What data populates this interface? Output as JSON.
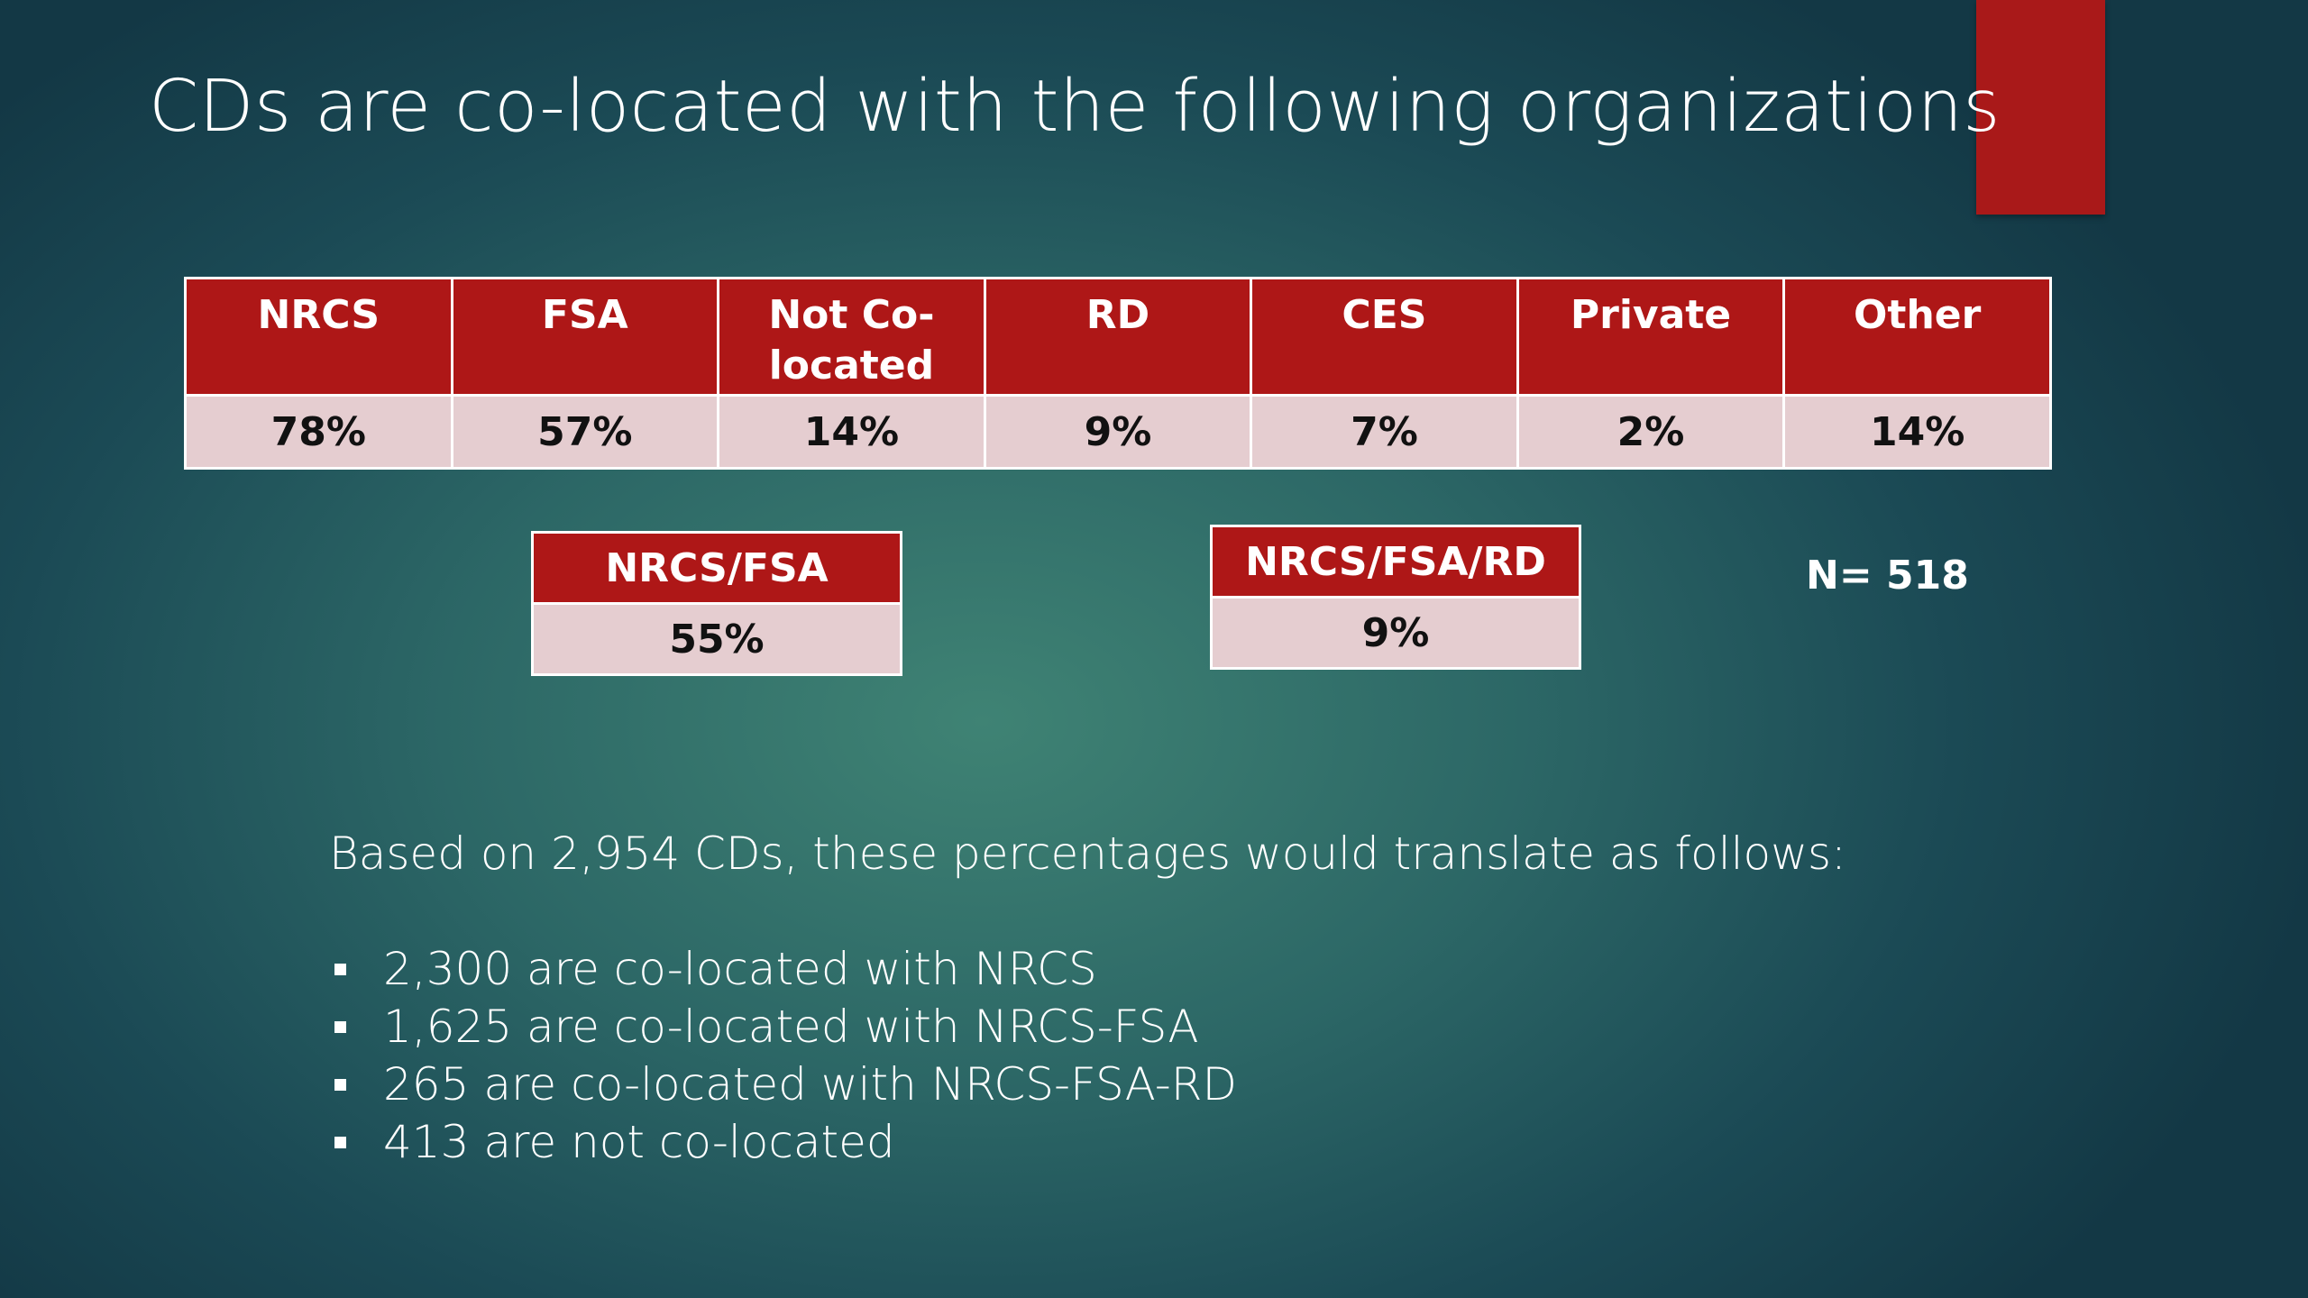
{
  "title": "CDs are co-located with the following organizations",
  "colors": {
    "accent_red": "#ae1717",
    "cell_pink": "#e5cdd0",
    "background_teal": "#2c6766"
  },
  "main_table": {
    "headers": [
      "NRCS",
      "FSA",
      "Not Co-located",
      "RD",
      "CES",
      "Private",
      "Other"
    ],
    "header_lines": {
      "not_colocated_line1": "Not Co-",
      "not_colocated_line2": "located"
    },
    "values": [
      "78%",
      "57%",
      "14%",
      "9%",
      "7%",
      "2%",
      "14%"
    ]
  },
  "combo_tables": [
    {
      "header": "NRCS/FSA",
      "value": "55%"
    },
    {
      "header": "NRCS/FSA/RD",
      "value": "9%"
    }
  ],
  "sample_size": "N= 518",
  "based_on_text": "Based on 2,954 CDs, these percentages would translate as follows:",
  "bullets": [
    "2,300 are co-located with NRCS",
    "1,625 are co-located with NRCS-FSA",
    "265 are co-located with NRCS-FSA-RD",
    "413 are not co-located"
  ]
}
